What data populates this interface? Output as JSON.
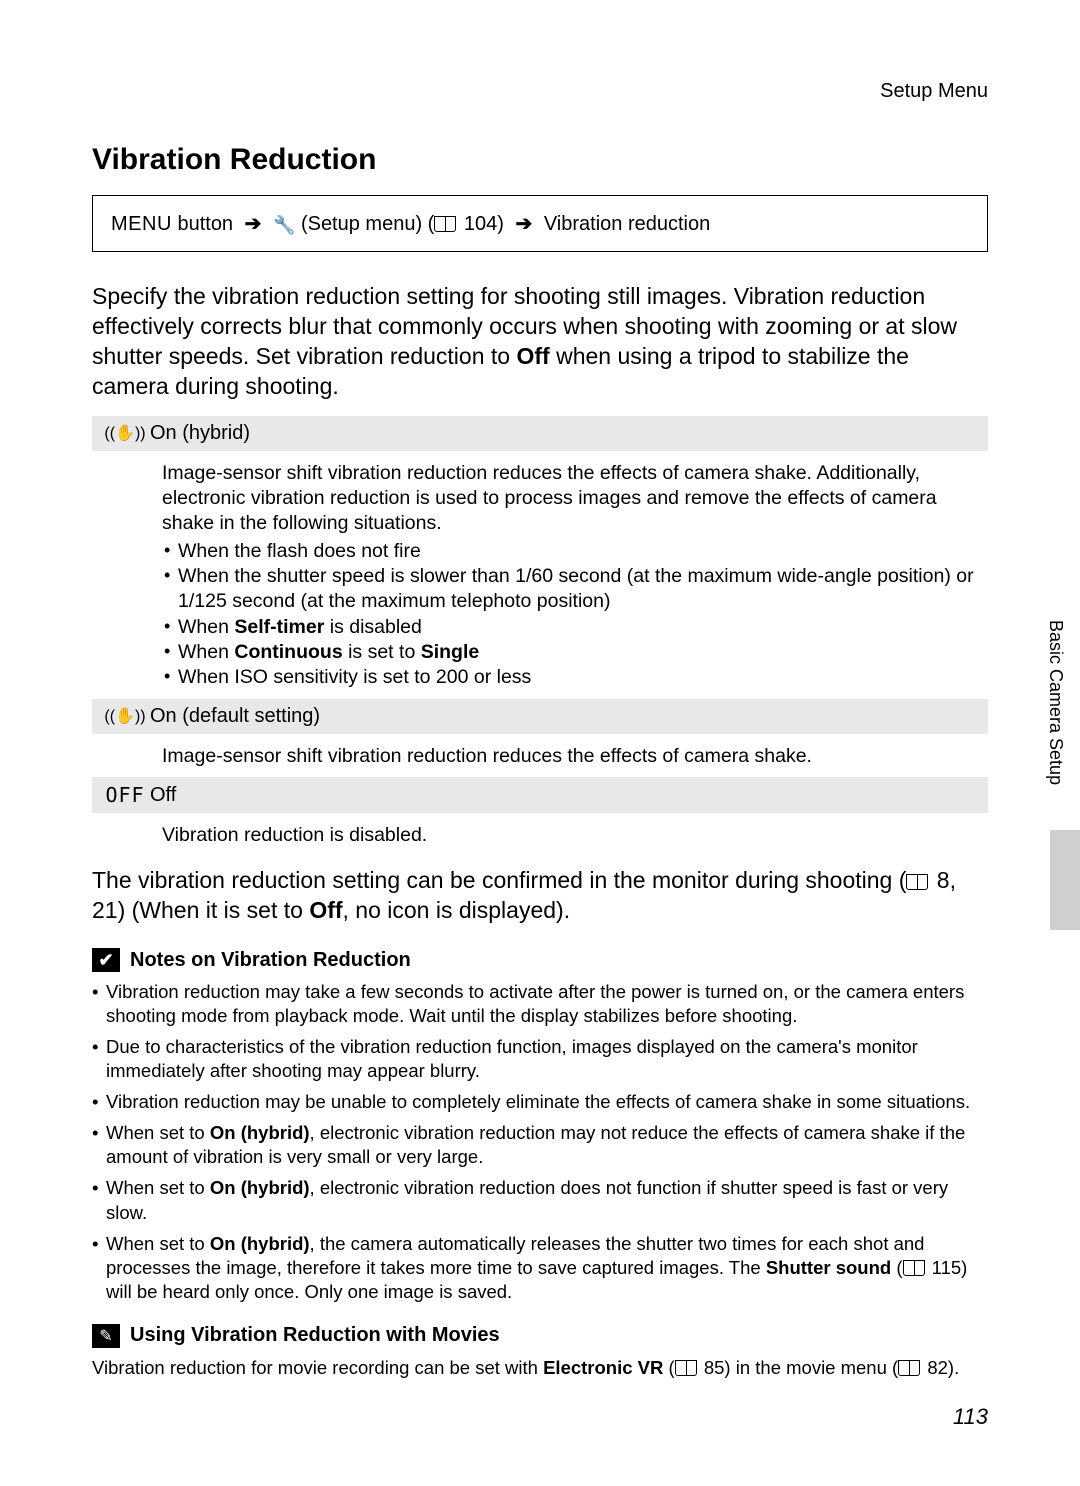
{
  "header": {
    "section": "Setup Menu"
  },
  "title": "Vibration Reduction",
  "breadcrumb": {
    "menu_word": "MENU",
    "button_label": "button",
    "setup_label": "(Setup menu)",
    "page_ref": "104)",
    "target": "Vibration reduction"
  },
  "intro_parts": {
    "before_off": "Specify the vibration reduction setting for shooting still images. Vibration reduction effectively corrects blur that commonly occurs when shooting with zooming or at slow shutter speeds. Set vibration reduction to ",
    "off_word": "Off",
    "after_off": " when using a tripod to stabilize the camera during shooting."
  },
  "options": [
    {
      "icon_text": "((✋))",
      "label": "On (hybrid)",
      "desc_lead": "Image-sensor shift vibration reduction reduces the effects of camera shake. Additionally, electronic vibration reduction is used to process images and remove the effects of camera shake in the following situations.",
      "bullets": [
        {
          "pre": "When the flash does not fire"
        },
        {
          "pre": "When the shutter speed is slower than 1/60 second (at the maximum wide-angle position) or 1/125 second (at the maximum telephoto position)"
        },
        {
          "pre": "When ",
          "b1": "Self-timer",
          "post": " is disabled"
        },
        {
          "pre": "When ",
          "b1": "Continuous",
          "mid": " is set to ",
          "b2": "Single"
        },
        {
          "pre": "When ISO sensitivity is set to 200 or less"
        }
      ]
    },
    {
      "icon_text": "((✋))",
      "label": "On (default setting)",
      "desc_lead": "Image-sensor shift vibration reduction reduces the effects of camera shake."
    },
    {
      "icon_text": "OFF",
      "label": "Off",
      "desc_lead": "Vibration reduction is disabled."
    }
  ],
  "after_parts": {
    "p1": "The vibration reduction setting can be confirmed in the monitor during shooting (",
    "refs": " 8, 21) (When it is set to ",
    "off_word": "Off",
    "p2": ", no icon is displayed)."
  },
  "notes": {
    "title": "Notes on Vibration Reduction",
    "items": [
      {
        "pre": "Vibration reduction may take a few seconds to activate after the power is turned on, or the camera enters shooting mode from playback mode. Wait until the display stabilizes before shooting."
      },
      {
        "pre": "Due to characteristics of the vibration reduction function, images displayed on the camera's monitor immediately after shooting may appear blurry."
      },
      {
        "pre": "Vibration reduction may be unable to completely eliminate the effects of camera shake in some situations."
      },
      {
        "pre": "When set to ",
        "b1": "On (hybrid)",
        "post": ", electronic vibration reduction may not reduce the effects of camera shake if the amount of vibration is very small or very large."
      },
      {
        "pre": "When set to ",
        "b1": "On (hybrid)",
        "post": ", electronic vibration reduction does not function if shutter speed is fast or very slow."
      },
      {
        "pre": "When set to ",
        "b1": "On (hybrid)",
        "mid": ", the camera automatically releases the shutter two times for each shot and processes the image, therefore it takes more time to save captured images. The ",
        "b2": "Shutter sound",
        "post2": " (",
        "ref": " 115) will be heard only once. Only one image is saved."
      }
    ]
  },
  "movies": {
    "title": "Using Vibration Reduction with Movies",
    "pre": "Vibration reduction for movie recording can be set with ",
    "b1": "Electronic VR",
    "mid": " (",
    "ref1": " 85) in the movie menu (",
    "ref2": " 82)."
  },
  "sidetab": "Basic Camera Setup",
  "pagenum": "113"
}
